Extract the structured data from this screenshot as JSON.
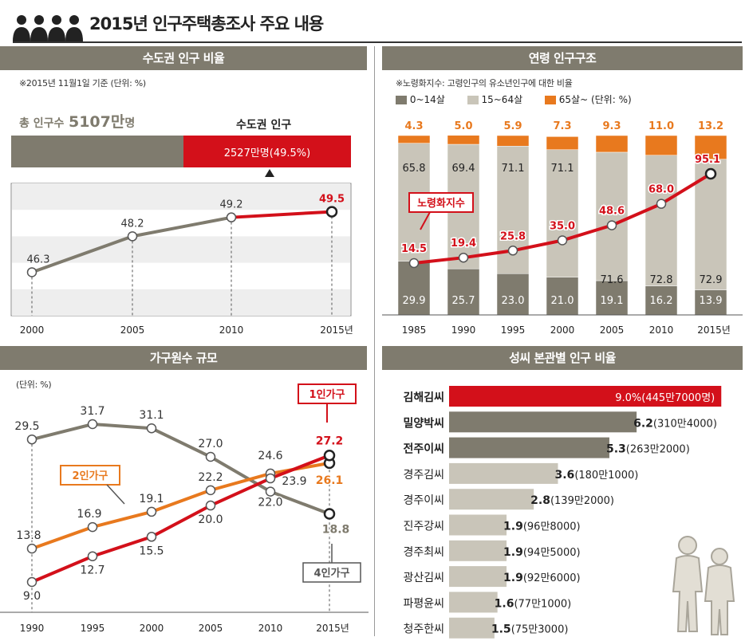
{
  "title": "2015년 인구주택총조사 주요 내용",
  "icons": [
    "people-group-icon",
    "family-silhouette-icon"
  ],
  "colors": {
    "olive": "#7f7b6e",
    "red": "#d3101a",
    "orange": "#e8791e",
    "light": "#c9c5b9",
    "head": "#7f7b6e"
  },
  "capital": {
    "header": "수도권 인구 비율",
    "note": "※2015년 11월1일 기준 (단위: %)",
    "total_label": "총 인구수",
    "total_value": "5107만",
    "total_unit": "명",
    "capital_label": "수도권 인구",
    "capital_value": "2527만명(49.5%)"
  },
  "age": {
    "header": "연령 인구구조",
    "note": "※노령화지수: 고령인구의 유소년인구에 대한 비율",
    "legend": [
      "0~14살",
      "15~64살",
      "65살~ (단위: %)"
    ],
    "index_label": "노령화지수"
  },
  "household": {
    "header": "가구원수 규모",
    "unit": "(단위: %)",
    "label_1": "1인가구",
    "label_2": "2인가구",
    "label_4": "4인가구"
  },
  "clan": {
    "header": "성씨 본관별 인구 비율"
  },
  "chart_data": [
    {
      "type": "line",
      "x": [
        "2000",
        "2005",
        "2010",
        "2015년"
      ],
      "values": [
        46.3,
        48.2,
        49.2,
        49.5
      ],
      "labels": [
        "46.3",
        "48.2",
        "49.2",
        "49.5"
      ],
      "ylim": [
        44,
        51
      ]
    },
    {
      "type": "bar",
      "stacked": true,
      "categories": [
        "1985",
        "1990",
        "1995",
        "2000",
        "2005",
        "2010",
        "2015년"
      ],
      "series": [
        {
          "name": "0~14살",
          "values": [
            29.9,
            25.7,
            23.0,
            21.0,
            19.1,
            16.2,
            13.9
          ],
          "labels": [
            "29.9",
            "25.7",
            "23.0",
            "21.0",
            "19.1",
            "16.2",
            "13.9"
          ]
        },
        {
          "name": "15~64살",
          "values": [
            65.8,
            69.4,
            71.1,
            71.1,
            71.6,
            72.8,
            72.9
          ],
          "labels": [
            "65.8",
            "69.4",
            "71.1",
            "71.1",
            "71.6",
            "72.8",
            "72.9"
          ]
        },
        {
          "name": "65살~",
          "values": [
            4.3,
            5.0,
            5.9,
            7.3,
            9.3,
            11.0,
            13.2
          ],
          "labels": [
            "4.3",
            "5.0",
            "5.9",
            "7.3",
            "9.3",
            "11.0",
            "13.2"
          ]
        }
      ],
      "index_values": [
        14.5,
        19.4,
        25.8,
        35.0,
        48.6,
        68.0,
        95.1
      ],
      "index_labels": [
        "14.5",
        "19.4",
        "25.8",
        "35.0",
        "48.6",
        "68.0",
        "95.1"
      ],
      "ylim": [
        0,
        100
      ]
    },
    {
      "type": "line",
      "x": [
        "1990",
        "1995",
        "2000",
        "2005",
        "2010",
        "2015년"
      ],
      "series": [
        {
          "name": "4인가구",
          "values": [
            29.5,
            31.7,
            31.1,
            27.0,
            22.0,
            18.8
          ],
          "labels": [
            "29.5",
            "31.7",
            "31.1",
            "27.0",
            "22.0",
            "18.8"
          ]
        },
        {
          "name": "2인가구",
          "values": [
            13.8,
            16.9,
            19.1,
            22.2,
            24.6,
            26.1
          ],
          "labels": [
            "13.8",
            "16.9",
            "19.1",
            "22.2",
            "24.6",
            "26.1"
          ]
        },
        {
          "name": "1인가구",
          "values": [
            9.0,
            12.7,
            15.5,
            20.0,
            23.9,
            27.2
          ],
          "labels": [
            "9.0",
            "12.7",
            "15.5",
            "20.0",
            "23.9",
            "27.2"
          ]
        }
      ],
      "ylim": [
        5,
        35
      ]
    },
    {
      "type": "bar",
      "orientation": "horizontal",
      "categories": [
        "김해김씨",
        "밀양박씨",
        "전주이씨",
        "경주김씨",
        "경주이씨",
        "진주강씨",
        "경주최씨",
        "광산김씨",
        "파평윤씨",
        "청주한씨"
      ],
      "values": [
        9.0,
        6.2,
        5.3,
        3.6,
        2.8,
        1.9,
        1.9,
        1.9,
        1.6,
        1.5
      ],
      "value_labels": [
        "9.0%",
        "6.2",
        "5.3",
        "3.6",
        "2.8",
        "1.9",
        "1.9",
        "1.9",
        "1.6",
        "1.5"
      ],
      "count_labels": [
        "(445만7000명)",
        "(310만4000)",
        "(263만2000)",
        "(180만1000)",
        "(139만2000)",
        "(96만8000)",
        "(94만5000)",
        "(92만6000)",
        "(77만1000)",
        "(75만3000)"
      ],
      "xlim": [
        0,
        9.6
      ]
    }
  ]
}
